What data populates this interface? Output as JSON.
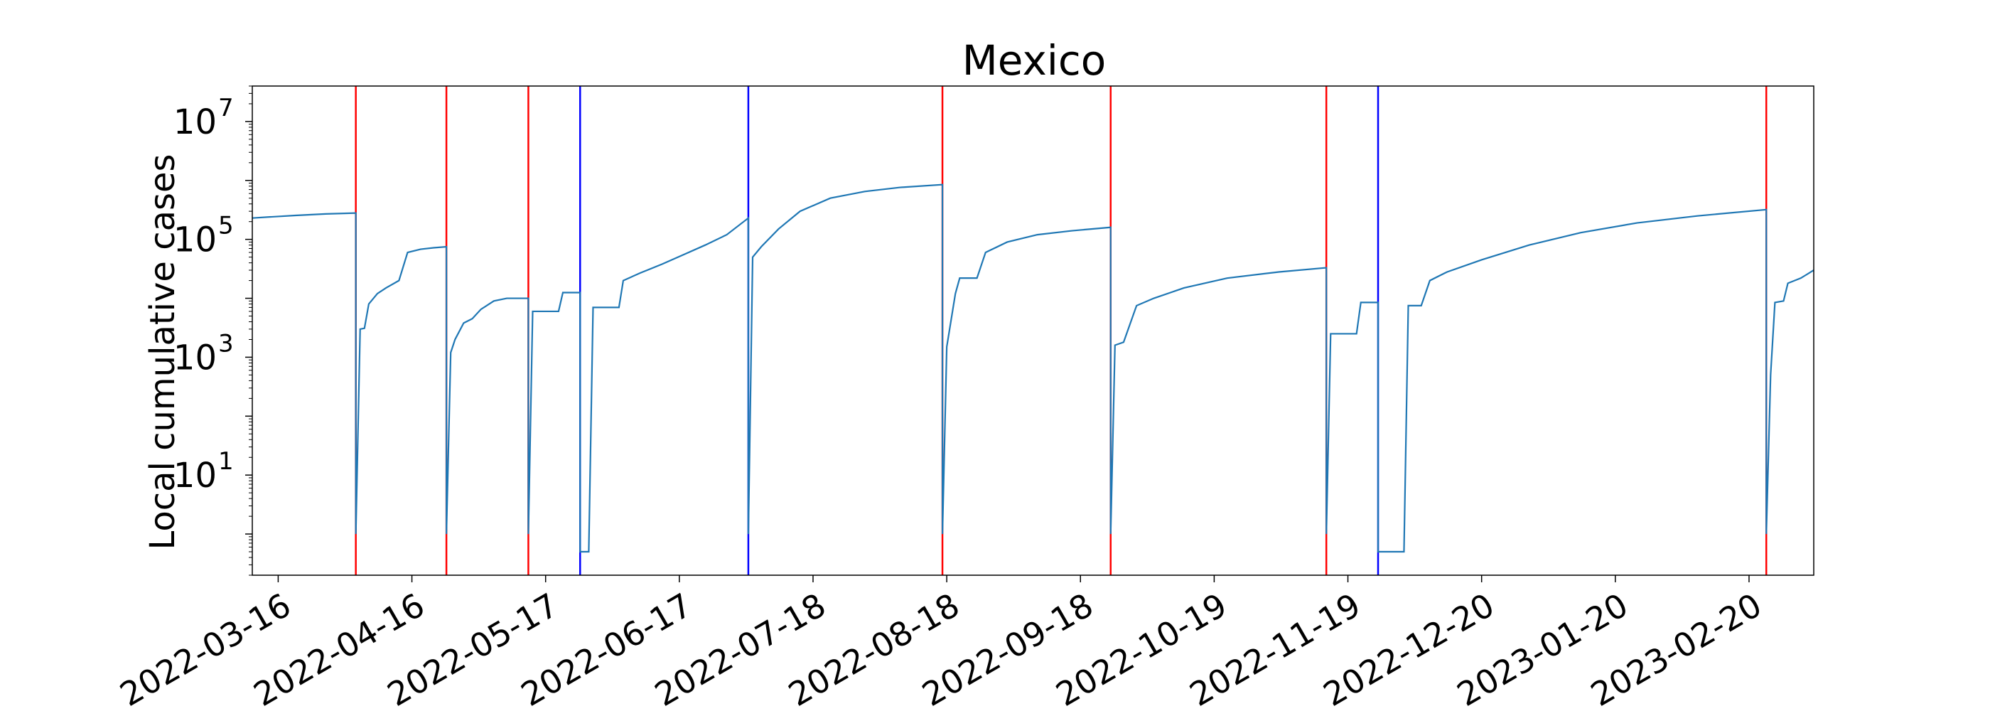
{
  "chart_data": {
    "type": "line",
    "title": "Mexico",
    "xlabel": "",
    "ylabel": "Local cumulative cases",
    "y_scale": "log",
    "ylim": [
      0.2,
      40000000
    ],
    "xlim": [
      "2022-03-10",
      "2023-03-07"
    ],
    "grid": false,
    "legend": "none",
    "colors": {
      "series": "#1f77b4",
      "red_marker": "#ff0000",
      "blue_marker": "#0000ff",
      "axes": "#000000"
    },
    "x_ticks": [
      "2022-03-16",
      "2022-04-16",
      "2022-05-17",
      "2022-06-17",
      "2022-07-18",
      "2022-08-18",
      "2022-09-18",
      "2022-10-19",
      "2022-11-19",
      "2022-12-20",
      "2023-01-20",
      "2023-02-20"
    ],
    "y_ticks": [
      {
        "value": 10,
        "base": "10",
        "exp": "1"
      },
      {
        "value": 1000,
        "base": "10",
        "exp": "3"
      },
      {
        "value": 100000,
        "base": "10",
        "exp": "5"
      },
      {
        "value": 10000000,
        "base": "10",
        "exp": "7"
      }
    ],
    "vertical_lines": [
      {
        "date": "2022-04-03",
        "color": "red"
      },
      {
        "date": "2022-04-24",
        "color": "red"
      },
      {
        "date": "2022-05-13",
        "color": "red"
      },
      {
        "date": "2022-05-25",
        "color": "blue"
      },
      {
        "date": "2022-07-03",
        "color": "blue"
      },
      {
        "date": "2022-08-17",
        "color": "red"
      },
      {
        "date": "2022-09-25",
        "color": "red"
      },
      {
        "date": "2022-11-14",
        "color": "red"
      },
      {
        "date": "2022-11-26",
        "color": "blue"
      },
      {
        "date": "2023-02-24",
        "color": "red"
      }
    ],
    "series": [
      {
        "points": [
          [
            "2022-03-10",
            230000
          ],
          [
            "2022-03-14",
            240000
          ],
          [
            "2022-03-20",
            255000
          ],
          [
            "2022-03-27",
            270000
          ],
          [
            "2022-04-03",
            280000
          ],
          [
            "2022-04-03",
            1
          ],
          [
            "2022-04-04",
            3000
          ],
          [
            "2022-04-05",
            3100
          ],
          [
            "2022-04-06",
            8000
          ],
          [
            "2022-04-08",
            12000
          ],
          [
            "2022-04-10",
            15000
          ],
          [
            "2022-04-13",
            20000
          ],
          [
            "2022-04-15",
            60000
          ],
          [
            "2022-04-18",
            68000
          ],
          [
            "2022-04-21",
            72000
          ],
          [
            "2022-04-24",
            75000
          ],
          [
            "2022-04-24",
            1
          ],
          [
            "2022-04-25",
            1200
          ],
          [
            "2022-04-26",
            2000
          ],
          [
            "2022-04-28",
            3800
          ],
          [
            "2022-04-30",
            4500
          ],
          [
            "2022-05-02",
            6500
          ],
          [
            "2022-05-05",
            9000
          ],
          [
            "2022-05-08",
            10000
          ],
          [
            "2022-05-13",
            10000
          ],
          [
            "2022-05-13",
            1
          ],
          [
            "2022-05-14",
            6000
          ],
          [
            "2022-05-20",
            6000
          ],
          [
            "2022-05-21",
            12500
          ],
          [
            "2022-05-25",
            12500
          ],
          [
            "2022-05-25",
            0.5
          ],
          [
            "2022-05-27",
            0.5
          ],
          [
            "2022-05-28",
            7000
          ],
          [
            "2022-06-03",
            7000
          ],
          [
            "2022-06-04",
            20000
          ],
          [
            "2022-06-08",
            27000
          ],
          [
            "2022-06-13",
            38000
          ],
          [
            "2022-06-18",
            55000
          ],
          [
            "2022-06-23",
            80000
          ],
          [
            "2022-06-28",
            120000
          ],
          [
            "2022-07-03",
            230000
          ],
          [
            "2022-07-03",
            1
          ],
          [
            "2022-07-04",
            50000
          ],
          [
            "2022-07-06",
            75000
          ],
          [
            "2022-07-10",
            150000
          ],
          [
            "2022-07-15",
            300000
          ],
          [
            "2022-07-22",
            500000
          ],
          [
            "2022-07-30",
            650000
          ],
          [
            "2022-08-07",
            760000
          ],
          [
            "2022-08-17",
            850000
          ],
          [
            "2022-08-17",
            1
          ],
          [
            "2022-08-18",
            1500
          ],
          [
            "2022-08-20",
            12000
          ],
          [
            "2022-08-21",
            22000
          ],
          [
            "2022-08-25",
            22000
          ],
          [
            "2022-08-27",
            60000
          ],
          [
            "2022-09-01",
            90000
          ],
          [
            "2022-09-08",
            120000
          ],
          [
            "2022-09-16",
            140000
          ],
          [
            "2022-09-25",
            160000
          ],
          [
            "2022-09-25",
            1
          ],
          [
            "2022-09-26",
            1600
          ],
          [
            "2022-09-28",
            1800
          ],
          [
            "2022-10-01",
            7500
          ],
          [
            "2022-10-05",
            10000
          ],
          [
            "2022-10-12",
            15000
          ],
          [
            "2022-10-22",
            22000
          ],
          [
            "2022-11-03",
            28000
          ],
          [
            "2022-11-14",
            33000
          ],
          [
            "2022-11-14",
            1
          ],
          [
            "2022-11-15",
            2500
          ],
          [
            "2022-11-21",
            2500
          ],
          [
            "2022-11-22",
            8500
          ],
          [
            "2022-11-26",
            8500
          ],
          [
            "2022-11-26",
            0.5
          ],
          [
            "2022-12-02",
            0.5
          ],
          [
            "2022-12-03",
            7500
          ],
          [
            "2022-12-06",
            7500
          ],
          [
            "2022-12-08",
            20000
          ],
          [
            "2022-12-12",
            28000
          ],
          [
            "2022-12-20",
            45000
          ],
          [
            "2022-12-31",
            80000
          ],
          [
            "2023-01-12",
            130000
          ],
          [
            "2023-01-25",
            190000
          ],
          [
            "2023-02-08",
            250000
          ],
          [
            "2023-02-24",
            320000
          ],
          [
            "2023-02-24",
            1
          ],
          [
            "2023-02-25",
            500
          ],
          [
            "2023-02-26",
            8500
          ],
          [
            "2023-02-28",
            9000
          ],
          [
            "2023-03-01",
            18000
          ],
          [
            "2023-03-04",
            22000
          ],
          [
            "2023-03-07",
            30000
          ]
        ]
      }
    ]
  }
}
